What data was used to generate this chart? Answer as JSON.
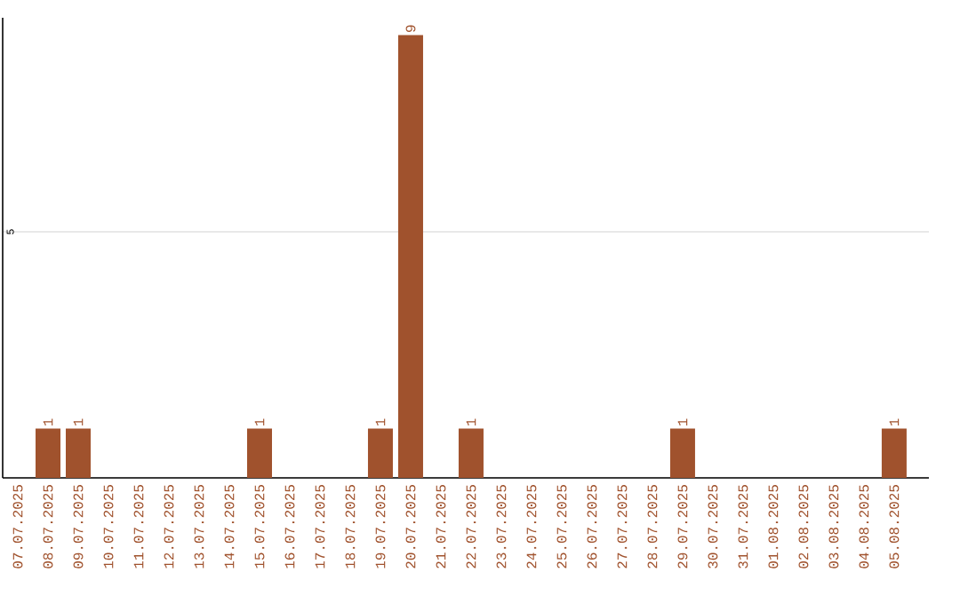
{
  "chart_data": {
    "type": "bar",
    "categories": [
      "07.07.2025",
      "08.07.2025",
      "09.07.2025",
      "10.07.2025",
      "11.07.2025",
      "12.07.2025",
      "13.07.2025",
      "14.07.2025",
      "15.07.2025",
      "16.07.2025",
      "17.07.2025",
      "18.07.2025",
      "19.07.2025",
      "20.07.2025",
      "21.07.2025",
      "22.07.2025",
      "23.07.2025",
      "24.07.2025",
      "25.07.2025",
      "26.07.2025",
      "27.07.2025",
      "28.07.2025",
      "29.07.2025",
      "30.07.2025",
      "31.07.2025",
      "01.08.2025",
      "02.08.2025",
      "03.08.2025",
      "04.08.2025",
      "05.08.2025"
    ],
    "values": [
      0,
      1,
      1,
      0,
      0,
      0,
      0,
      0,
      1,
      0,
      0,
      0,
      1,
      9,
      0,
      1,
      0,
      0,
      0,
      0,
      0,
      0,
      1,
      0,
      0,
      0,
      0,
      0,
      0,
      1
    ],
    "value_labels": [
      null,
      "1",
      "1",
      null,
      null,
      null,
      null,
      null,
      "1",
      null,
      null,
      null,
      "1",
      "9",
      null,
      "1",
      null,
      null,
      null,
      null,
      null,
      null,
      "1",
      null,
      null,
      null,
      null,
      null,
      null,
      "1"
    ],
    "color": "#a0522d",
    "ylim": [
      0,
      9.35
    ],
    "yticks": [
      {
        "value": 0,
        "label": null
      },
      5
    ],
    "grid": "y"
  }
}
